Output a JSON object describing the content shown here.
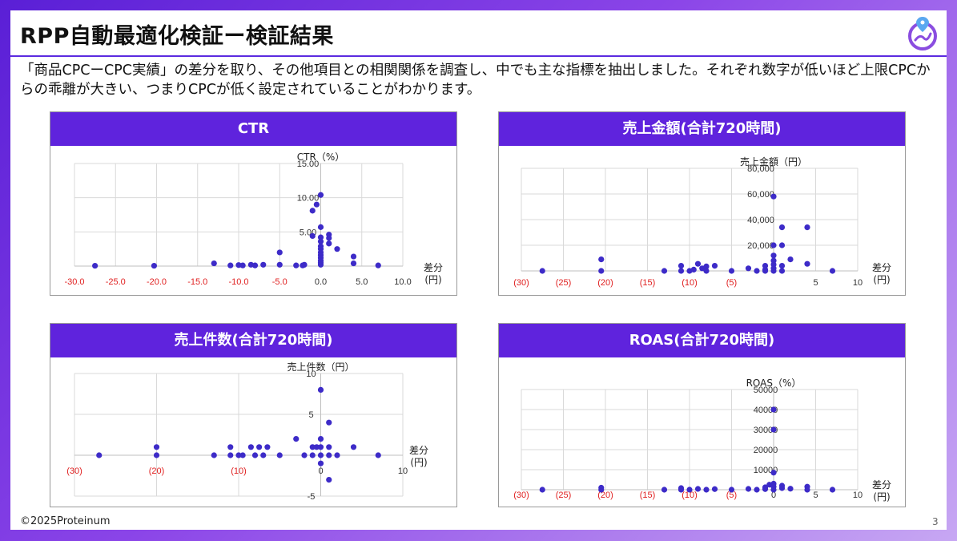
{
  "slide": {
    "title": "RPP自動最適化検証ー検証結果",
    "description": "「商品CPCーCPC実績」の差分を取り、その他項目との相関関係を調査し、中でも主な指標を抽出しました。それぞれ数字が低いほど上限CPCからの乖離が大きい、つまりCPCが低く設定されていることがわかります。",
    "copyright": "©2025Proteinum",
    "page_number": "3"
  },
  "colors": {
    "accent": "#5f23dd",
    "point": "#3d2bc8",
    "negative_tick": "#e02020"
  },
  "chart_data": [
    {
      "type": "scatter",
      "panel_title": "CTR",
      "ylabel": "CTR（%）",
      "xlabel": "差分\n(円)",
      "xlim": [
        -30,
        10
      ],
      "ylim": [
        0,
        15
      ],
      "x_ticks": [
        -30,
        -25,
        -20,
        -15,
        -10,
        -5,
        0,
        5,
        10
      ],
      "x_tick_labels": [
        "-30.0",
        "-25.0",
        "-20.0",
        "-15.0",
        "-10.0",
        "-5.0",
        "0.0",
        "5.0",
        "10.0"
      ],
      "y_ticks": [
        5,
        10,
        15
      ],
      "y_tick_labels": [
        "5.00",
        "10.00",
        "15.00"
      ],
      "points": [
        [
          -27.5,
          0.05
        ],
        [
          -20.3,
          0.05
        ],
        [
          -13,
          0.4
        ],
        [
          -11,
          0.1
        ],
        [
          -10,
          0.15
        ],
        [
          -9.5,
          0.1
        ],
        [
          -8.5,
          0.2
        ],
        [
          -8,
          0.1
        ],
        [
          -7,
          0.2
        ],
        [
          -5,
          2
        ],
        [
          -5,
          0.2
        ],
        [
          -3,
          0.1
        ],
        [
          -2.2,
          0.1
        ],
        [
          -2,
          0.2
        ],
        [
          -1,
          4.4
        ],
        [
          -1,
          8.1
        ],
        [
          -0.5,
          9.0
        ],
        [
          0,
          10.4
        ],
        [
          0,
          5.7
        ],
        [
          0,
          4.2
        ],
        [
          0,
          3.6
        ],
        [
          0,
          2.9
        ],
        [
          0,
          2.5
        ],
        [
          0,
          2.0
        ],
        [
          0,
          1.6
        ],
        [
          0,
          1.2
        ],
        [
          0,
          0.8
        ],
        [
          0,
          0.5
        ],
        [
          0,
          0.2
        ],
        [
          1,
          4.6
        ],
        [
          1,
          4.1
        ],
        [
          1,
          3.3
        ],
        [
          2,
          2.5
        ],
        [
          4,
          1.4
        ],
        [
          4,
          0.4
        ],
        [
          7,
          0.1
        ]
      ]
    },
    {
      "type": "scatter",
      "panel_title": "売上金額(合計720時間)",
      "ylabel": "売上金額（円）",
      "xlabel": "差分\n(円)",
      "xlim": [
        -30,
        10
      ],
      "ylim": [
        0,
        80000
      ],
      "x_ticks": [
        -30,
        -25,
        -20,
        -15,
        -10,
        -5,
        0,
        5,
        10
      ],
      "x_tick_labels": [
        "(30)",
        "(25)",
        "(20)",
        "(15)",
        "(10)",
        "(5)",
        "",
        "5",
        "10"
      ],
      "y_ticks": [
        20000,
        40000,
        60000,
        80000
      ],
      "y_tick_labels": [
        "20,000",
        "40,000",
        "60,000",
        "80,000"
      ],
      "points": [
        [
          -27.5,
          0
        ],
        [
          -20.5,
          0
        ],
        [
          -20.5,
          9000
        ],
        [
          -13,
          0
        ],
        [
          -11,
          0
        ],
        [
          -11,
          4000
        ],
        [
          -10,
          0
        ],
        [
          -9.5,
          1000
        ],
        [
          -9,
          5500
        ],
        [
          -8.5,
          2000
        ],
        [
          -8,
          0
        ],
        [
          -8,
          3500
        ],
        [
          -7,
          4000
        ],
        [
          -5,
          0
        ],
        [
          -3,
          2000
        ],
        [
          -2,
          0
        ],
        [
          -1,
          0
        ],
        [
          -1,
          1000
        ],
        [
          -1,
          4000
        ],
        [
          0,
          58000
        ],
        [
          0,
          20000
        ],
        [
          0,
          12000
        ],
        [
          0,
          8000
        ],
        [
          0,
          5000
        ],
        [
          0,
          2000
        ],
        [
          0,
          0
        ],
        [
          1,
          34000
        ],
        [
          1,
          20000
        ],
        [
          1,
          4000
        ],
        [
          1,
          0
        ],
        [
          2,
          9000
        ],
        [
          4,
          34000
        ],
        [
          4,
          5500
        ],
        [
          7,
          0
        ]
      ]
    },
    {
      "type": "scatter",
      "panel_title": "売上件数(合計720時間)",
      "ylabel": "売上件数（円）",
      "xlabel": "差分\n(円)",
      "xlim": [
        -30,
        10
      ],
      "ylim": [
        -5,
        10
      ],
      "x_ticks": [
        -30,
        -20,
        -10,
        0,
        10
      ],
      "x_tick_labels": [
        "(30)",
        "(20)",
        "(10)",
        "0",
        "10"
      ],
      "y_ticks": [
        -5,
        5,
        10
      ],
      "y_tick_labels": [
        "-5",
        "5",
        "10"
      ],
      "points": [
        [
          -27,
          0
        ],
        [
          -20,
          0
        ],
        [
          -20,
          1
        ],
        [
          -13,
          0
        ],
        [
          -11,
          0
        ],
        [
          -11,
          1
        ],
        [
          -10,
          0
        ],
        [
          -9.5,
          0
        ],
        [
          -8.5,
          1
        ],
        [
          -8,
          0
        ],
        [
          -7.5,
          1
        ],
        [
          -7,
          0
        ],
        [
          -6.5,
          1
        ],
        [
          -5,
          0
        ],
        [
          -3,
          2
        ],
        [
          -2,
          0
        ],
        [
          -1,
          1
        ],
        [
          -1,
          0
        ],
        [
          -0.5,
          1
        ],
        [
          0,
          8
        ],
        [
          0,
          2
        ],
        [
          0,
          1
        ],
        [
          0,
          0
        ],
        [
          0,
          -1
        ],
        [
          1,
          4
        ],
        [
          1,
          1
        ],
        [
          1,
          0
        ],
        [
          1,
          -3
        ],
        [
          2,
          0
        ],
        [
          4,
          1
        ],
        [
          7,
          0
        ]
      ]
    },
    {
      "type": "scatter",
      "panel_title": "ROAS(合計720時間)",
      "ylabel": "ROAS（%）",
      "xlabel": "差分\n(円)",
      "xlim": [
        -30,
        10
      ],
      "ylim": [
        0,
        50000
      ],
      "x_ticks": [
        -30,
        -25,
        -20,
        -15,
        -10,
        -5,
        0,
        5,
        10
      ],
      "x_tick_labels": [
        "(30)",
        "(25)",
        "(20)",
        "(15)",
        "(10)",
        "(5)",
        "0",
        "5",
        "10"
      ],
      "y_ticks": [
        10000,
        20000,
        30000,
        40000,
        50000
      ],
      "y_tick_labels": [
        "10000",
        "20000",
        "30000",
        "40000",
        "50000"
      ],
      "points": [
        [
          -27.5,
          0
        ],
        [
          -20.5,
          0
        ],
        [
          -20.5,
          1000
        ],
        [
          -13,
          0
        ],
        [
          -11,
          0
        ],
        [
          -11,
          800
        ],
        [
          -10,
          0
        ],
        [
          -9,
          400
        ],
        [
          -8,
          0
        ],
        [
          -7,
          300
        ],
        [
          -5,
          0
        ],
        [
          -3,
          400
        ],
        [
          -2,
          0
        ],
        [
          -1,
          1200
        ],
        [
          -1,
          300
        ],
        [
          -0.5,
          2500
        ],
        [
          0,
          40000
        ],
        [
          0,
          30000
        ],
        [
          0,
          8500
        ],
        [
          0,
          3000
        ],
        [
          0,
          1500
        ],
        [
          0,
          0
        ],
        [
          1,
          2000
        ],
        [
          1,
          800
        ],
        [
          2,
          500
        ],
        [
          4,
          1500
        ],
        [
          4,
          0
        ],
        [
          7,
          0
        ]
      ]
    }
  ]
}
